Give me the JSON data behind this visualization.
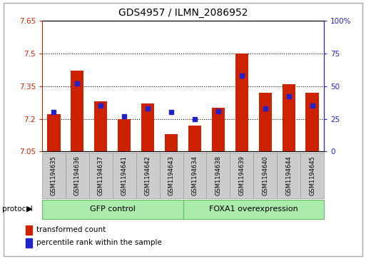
{
  "title": "GDS4957 / ILMN_2086952",
  "samples": [
    "GSM1194635",
    "GSM1194636",
    "GSM1194637",
    "GSM1194641",
    "GSM1194642",
    "GSM1194643",
    "GSM1194634",
    "GSM1194638",
    "GSM1194639",
    "GSM1194640",
    "GSM1194644",
    "GSM1194645"
  ],
  "transformed_count": [
    7.22,
    7.42,
    7.28,
    7.2,
    7.27,
    7.13,
    7.17,
    7.25,
    7.5,
    7.32,
    7.36,
    7.32
  ],
  "percentile_rank": [
    30,
    52,
    35,
    27,
    33,
    30,
    25,
    31,
    58,
    33,
    42,
    35
  ],
  "ylim_left": [
    7.05,
    7.65
  ],
  "ylim_right": [
    0,
    100
  ],
  "yticks_left": [
    7.05,
    7.2,
    7.35,
    7.5,
    7.65
  ],
  "yticks_right": [
    0,
    25,
    50,
    75,
    100
  ],
  "ytick_labels_left": [
    "7.05",
    "7.2",
    "7.35",
    "7.5",
    "7.65"
  ],
  "ytick_labels_right": [
    "0",
    "25",
    "50",
    "75",
    "100%"
  ],
  "hlines": [
    7.2,
    7.35,
    7.5
  ],
  "bar_color": "#cc2200",
  "dot_color": "#2222cc",
  "group1_label": "GFP control",
  "group2_label": "FOXA1 overexpression",
  "group1_indices": [
    0,
    1,
    2,
    3,
    4,
    5
  ],
  "group2_indices": [
    6,
    7,
    8,
    9,
    10,
    11
  ],
  "protocol_label": "protocol",
  "legend_bar_label": "transformed count",
  "legend_dot_label": "percentile rank within the sample",
  "bar_width": 0.55,
  "group_bg_color": "#aaeaaa",
  "sample_bg_color": "#cccccc"
}
